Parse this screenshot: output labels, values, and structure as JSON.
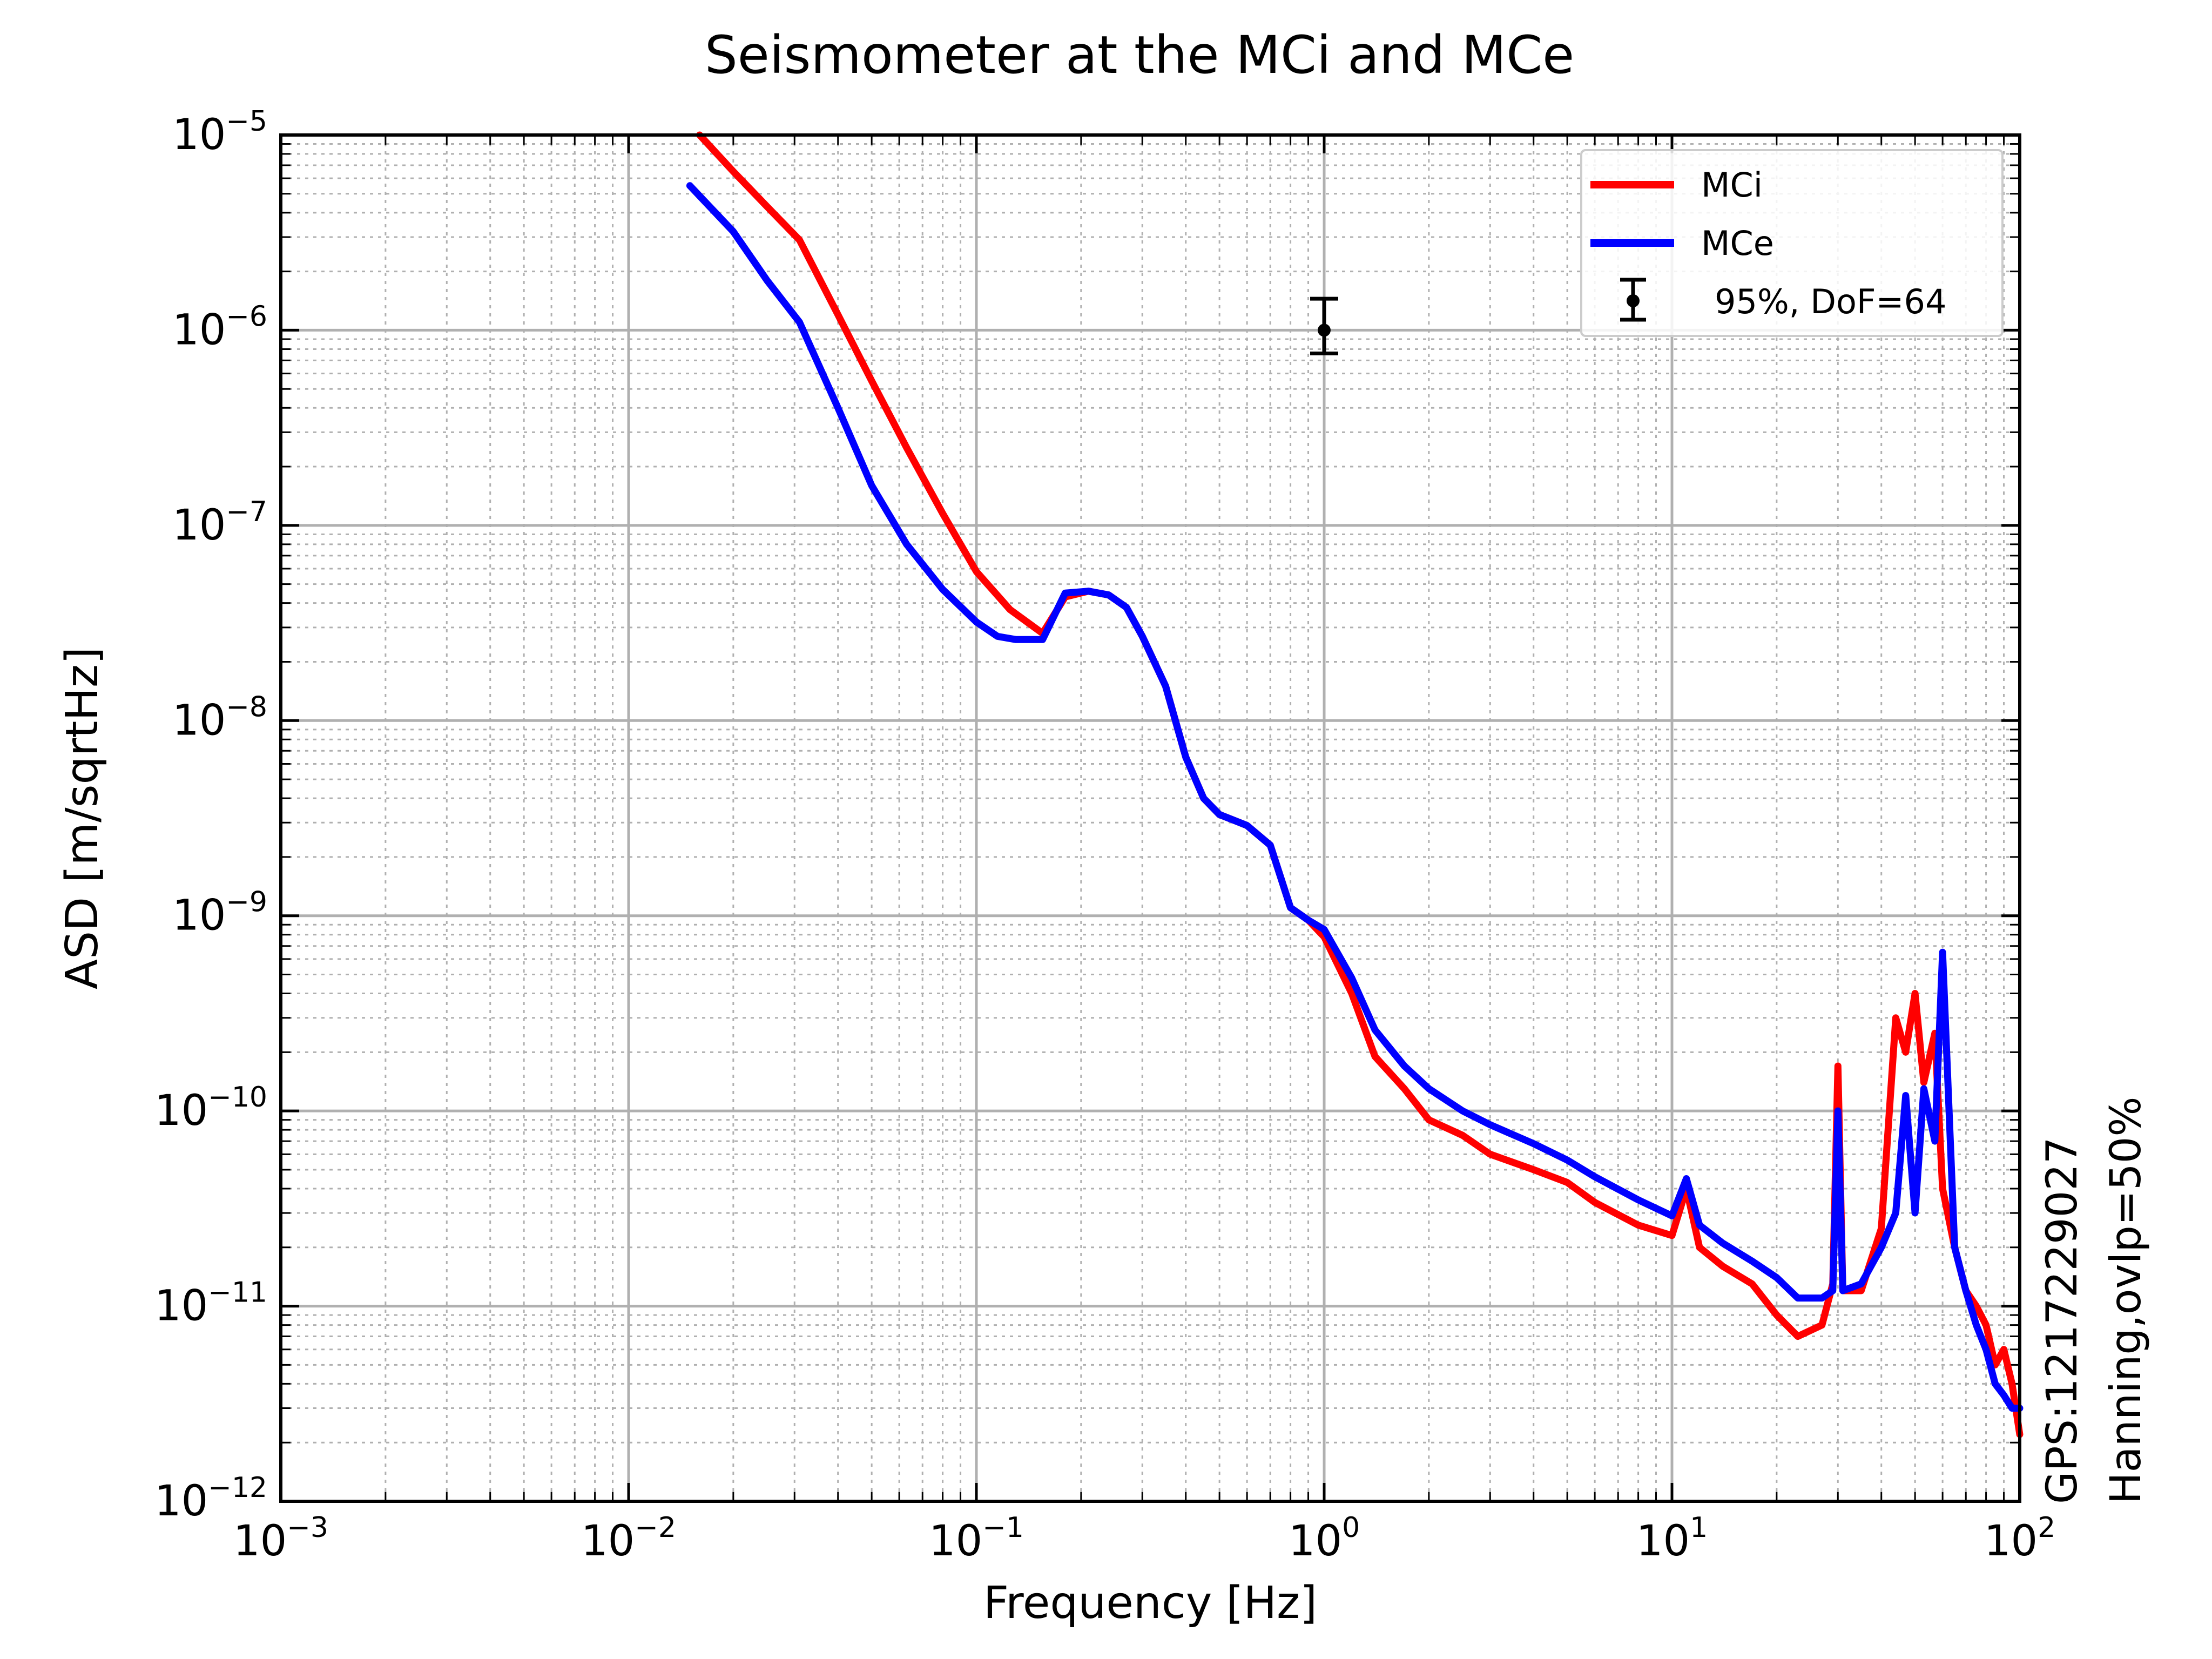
{
  "chart_data": {
    "type": "line",
    "title": "Seismometer at the MCi and MCe",
    "xlabel": "Frequency [Hz]",
    "ylabel": "ASD [m/sqrtHz]",
    "xscale": "log",
    "yscale": "log",
    "xlim": [
      0.001,
      100
    ],
    "ylim": [
      1e-12,
      1e-05
    ],
    "grid": true,
    "legend_position": "top-right",
    "x_ticks": [
      {
        "base": "10",
        "exp": "−3"
      },
      {
        "base": "10",
        "exp": "−2"
      },
      {
        "base": "10",
        "exp": "−1"
      },
      {
        "base": "10",
        "exp": "0"
      },
      {
        "base": "10",
        "exp": "1"
      },
      {
        "base": "10",
        "exp": "2"
      }
    ],
    "y_ticks": [
      {
        "base": "10",
        "exp": "−12"
      },
      {
        "base": "10",
        "exp": "−11"
      },
      {
        "base": "10",
        "exp": "−10"
      },
      {
        "base": "10",
        "exp": "−9"
      },
      {
        "base": "10",
        "exp": "−8"
      },
      {
        "base": "10",
        "exp": "−7"
      },
      {
        "base": "10",
        "exp": "−6"
      },
      {
        "base": "10",
        "exp": "−5"
      }
    ],
    "side_annotations": [
      "GPS:1217229027",
      "Hanning,ovlp=50%"
    ],
    "series": [
      {
        "name": "MCi",
        "color": "#ff0000",
        "x": [
          0.016,
          0.02,
          0.025,
          0.031,
          0.04,
          0.05,
          0.063,
          0.08,
          0.1,
          0.125,
          0.155,
          0.18,
          0.21,
          0.24,
          0.27,
          0.3,
          0.35,
          0.4,
          0.45,
          0.5,
          0.6,
          0.7,
          0.8,
          0.9,
          1.0,
          1.2,
          1.4,
          1.7,
          2.0,
          2.5,
          3.0,
          4.0,
          5.0,
          6.0,
          8.0,
          10.0,
          11.0,
          12.0,
          14.0,
          17.0,
          20.0,
          23.0,
          27.0,
          29.0,
          30.0,
          31.0,
          35.0,
          40.0,
          44.0,
          47.0,
          50.0,
          53.0,
          57.0,
          60.0,
          65.0,
          70.0,
          75.0,
          80.0,
          85.0,
          90.0,
          95.0,
          100.0
        ],
        "y": [
          1e-05,
          6.5e-06,
          4.3e-06,
          2.9e-06,
          1.2e-06,
          5.5e-07,
          2.5e-07,
          1.15e-07,
          5.8e-08,
          3.7e-08,
          2.8e-08,
          4.3e-08,
          4.6e-08,
          4.4e-08,
          3.8e-08,
          2.7e-08,
          1.5e-08,
          6.5e-09,
          4e-09,
          3.3e-09,
          2.9e-09,
          2.3e-09,
          1.1e-09,
          9.5e-10,
          7.8e-10,
          4e-10,
          1.9e-10,
          1.3e-10,
          9e-11,
          7.5e-11,
          6e-11,
          5e-11,
          4.3e-11,
          3.4e-11,
          2.6e-11,
          2.3e-11,
          4e-11,
          2e-11,
          1.6e-11,
          1.3e-11,
          9e-12,
          7e-12,
          8e-12,
          1.3e-11,
          1.7e-10,
          1.2e-11,
          1.2e-11,
          2.5e-11,
          3e-10,
          2e-10,
          4e-10,
          1.4e-10,
          2.5e-10,
          4e-11,
          2e-11,
          1.2e-11,
          1e-11,
          8e-12,
          5e-12,
          6e-12,
          4e-12,
          2.2e-12
        ]
      },
      {
        "name": "MCe",
        "color": "#0000ff",
        "x": [
          0.015,
          0.02,
          0.025,
          0.031,
          0.04,
          0.05,
          0.063,
          0.08,
          0.1,
          0.115,
          0.13,
          0.155,
          0.18,
          0.21,
          0.24,
          0.27,
          0.3,
          0.35,
          0.4,
          0.45,
          0.5,
          0.6,
          0.7,
          0.8,
          0.9,
          1.0,
          1.2,
          1.4,
          1.7,
          2.0,
          2.5,
          3.0,
          4.0,
          5.0,
          6.0,
          8.0,
          10.0,
          11.0,
          12.0,
          14.0,
          17.0,
          20.0,
          23.0,
          27.0,
          29.0,
          30.0,
          31.0,
          35.0,
          40.0,
          44.0,
          47.0,
          50.0,
          53.0,
          57.0,
          60.0,
          65.0,
          70.0,
          75.0,
          80.0,
          85.0,
          90.0,
          95.0,
          100.0
        ],
        "y": [
          5.5e-06,
          3.2e-06,
          1.8e-06,
          1.1e-06,
          4e-07,
          1.6e-07,
          8e-08,
          4.7e-08,
          3.2e-08,
          2.7e-08,
          2.6e-08,
          2.6e-08,
          4.5e-08,
          4.6e-08,
          4.4e-08,
          3.8e-08,
          2.7e-08,
          1.5e-08,
          6.5e-09,
          4e-09,
          3.3e-09,
          2.9e-09,
          2.3e-09,
          1.1e-09,
          9.5e-10,
          8.5e-10,
          4.8e-10,
          2.6e-10,
          1.7e-10,
          1.3e-10,
          1e-10,
          8.5e-11,
          6.8e-11,
          5.6e-11,
          4.6e-11,
          3.5e-11,
          2.9e-11,
          4.5e-11,
          2.6e-11,
          2.1e-11,
          1.7e-11,
          1.4e-11,
          1.1e-11,
          1.1e-11,
          1.2e-11,
          1e-10,
          1.2e-11,
          1.3e-11,
          2e-11,
          3e-11,
          1.2e-10,
          3e-11,
          1.3e-10,
          7e-11,
          6.5e-10,
          2e-11,
          1.2e-11,
          8e-12,
          6e-12,
          4e-12,
          3.5e-12,
          3e-12,
          3e-12
        ]
      }
    ],
    "errorbar": {
      "label": "95%, DoF=64",
      "x": 1.0,
      "y": 1e-06,
      "y_low": 7.6e-07,
      "y_high": 1.45e-06,
      "color": "#000000"
    }
  }
}
